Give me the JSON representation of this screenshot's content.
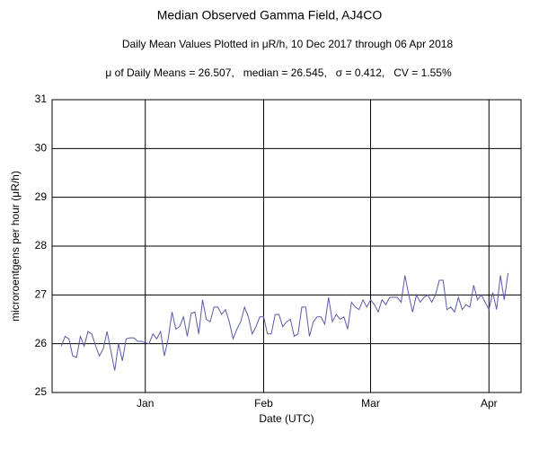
{
  "chart_data": {
    "type": "line",
    "title": "Median Observed Gamma Field, AJ4CO",
    "subtitle": "Daily Mean Values Plotted in μR/h, 10 Dec 2017 through 06 Apr 2018",
    "annotation": "μ of Daily Means = 26.507,   median = 26.545,   σ = 0.412,   CV = 1.55%",
    "xlabel": "Date (UTC)",
    "ylabel": "microroentgens per hour (μR/h)",
    "categories": [
      null,
      null,
      null,
      null,
      null,
      null,
      null,
      null,
      null,
      null,
      null,
      null,
      null,
      null,
      null,
      null,
      null,
      null,
      null,
      null,
      null,
      null,
      "Jan",
      null,
      null,
      null,
      null,
      null,
      null,
      null,
      null,
      null,
      null,
      null,
      null,
      null,
      null,
      null,
      null,
      null,
      null,
      null,
      null,
      null,
      null,
      null,
      null,
      null,
      null,
      null,
      null,
      null,
      null,
      "Feb",
      null,
      null,
      null,
      null,
      null,
      null,
      null,
      null,
      null,
      null,
      null,
      null,
      null,
      null,
      null,
      null,
      null,
      null,
      null,
      null,
      null,
      null,
      null,
      null,
      null,
      null,
      null,
      "Mar",
      null,
      null,
      null,
      null,
      null,
      null,
      null,
      null,
      null,
      null,
      null,
      null,
      null,
      null,
      null,
      null,
      null,
      null,
      null,
      null,
      null,
      null,
      null,
      null,
      null,
      null,
      null,
      null,
      null,
      null,
      "Apr",
      null,
      null,
      null,
      null,
      null
    ],
    "series": [
      {
        "name": "Daily mean",
        "color": "#5a5aa8",
        "values": [
          25.95,
          26.15,
          26.1,
          25.75,
          25.72,
          26.15,
          25.95,
          26.25,
          26.2,
          25.95,
          25.75,
          25.9,
          26.25,
          25.85,
          25.45,
          26.0,
          25.65,
          26.1,
          26.12,
          26.12,
          26.05,
          26.05,
          26.02,
          26.0,
          26.2,
          26.1,
          26.25,
          25.75,
          26.1,
          26.65,
          26.3,
          26.35,
          26.55,
          26.15,
          26.62,
          26.65,
          26.2,
          26.9,
          26.5,
          26.45,
          26.75,
          26.75,
          26.6,
          26.7,
          26.45,
          26.1,
          26.3,
          26.45,
          26.75,
          26.55,
          26.2,
          26.35,
          26.55,
          26.55,
          26.2,
          26.2,
          26.6,
          26.6,
          26.35,
          26.45,
          26.5,
          26.15,
          26.2,
          26.75,
          26.75,
          26.15,
          26.45,
          26.55,
          26.55,
          26.4,
          26.95,
          26.45,
          26.6,
          26.5,
          26.55,
          26.3,
          26.85,
          26.75,
          26.7,
          26.9,
          26.75,
          26.9,
          26.8,
          26.65,
          26.9,
          26.8,
          26.95,
          26.95,
          26.95,
          26.85,
          27.4,
          27.0,
          26.65,
          27.0,
          26.85,
          26.95,
          27.0,
          26.85,
          27.0,
          27.3,
          27.3,
          26.7,
          26.75,
          26.65,
          26.95,
          26.7,
          26.8,
          26.75,
          27.2,
          26.9,
          27.0,
          26.85,
          26.7,
          27.05,
          26.7,
          27.4,
          26.9,
          27.45
        ]
      }
    ],
    "ylim": [
      25,
      31
    ],
    "yticks": [
      25,
      26,
      27,
      28,
      29,
      30,
      31
    ],
    "grid": true
  }
}
